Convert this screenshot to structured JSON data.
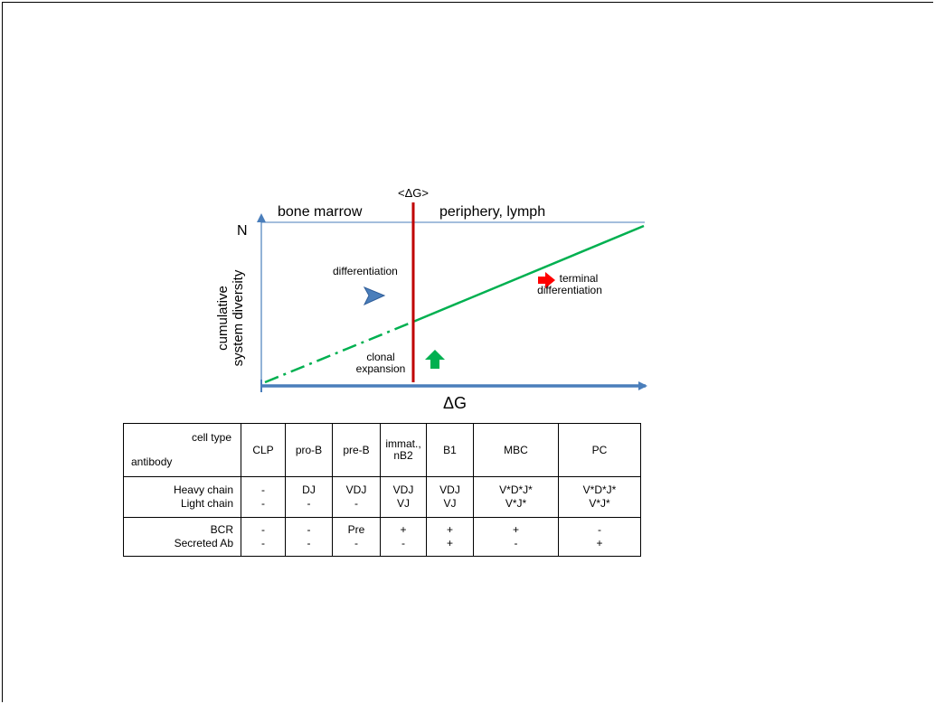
{
  "diagram": {
    "region_left": "bone marrow",
    "region_right": "periphery, lymph",
    "threshold_label": "<ΔG>",
    "y_axis_max_label": "N",
    "y_axis_label_line1": "cumulative",
    "y_axis_label_line2": "system diversity",
    "x_axis_label": "ΔG",
    "differentiation_label": "differentiation",
    "clonal_label_line1": "clonal",
    "clonal_label_line2": "expansion",
    "terminal_label_line1": "terminal",
    "terminal_label_line2": "differentiation",
    "colors": {
      "axis": "#4a7ebb",
      "threshold": "#c00000",
      "growth_line": "#00b050",
      "differentiation_arrow": "#4a7ebb",
      "clonal_arrow": "#00b050",
      "terminal_arrow": "#ff0000"
    },
    "icons": [
      "differentiation-arrow-icon",
      "clonal-expansion-arrow-icon",
      "terminal-differentiation-arrow-icon"
    ]
  },
  "table": {
    "header_cell_type": "cell type",
    "header_antibody": "antibody",
    "columns": [
      "CLP",
      "pro-B",
      "pre-B",
      "immat.,\nnB2",
      "B1",
      "MBC",
      "PC"
    ],
    "chain_labels": [
      "Heavy chain",
      "Light chain"
    ],
    "chain_values": [
      [
        "-",
        "-"
      ],
      [
        "DJ",
        "-"
      ],
      [
        "VDJ",
        "-"
      ],
      [
        "VDJ",
        "VJ"
      ],
      [
        "VDJ",
        "VJ"
      ],
      [
        "V*D*J*",
        "V*J*"
      ],
      [
        "V*D*J*",
        "V*J*"
      ]
    ],
    "ab_labels": [
      "BCR",
      "Secreted Ab"
    ],
    "ab_values": [
      [
        "-",
        "-"
      ],
      [
        "-",
        "-"
      ],
      [
        "Pre",
        "-"
      ],
      [
        "+",
        "-"
      ],
      [
        "+",
        "+"
      ],
      [
        "+",
        "-"
      ],
      [
        "-",
        "+"
      ]
    ]
  }
}
